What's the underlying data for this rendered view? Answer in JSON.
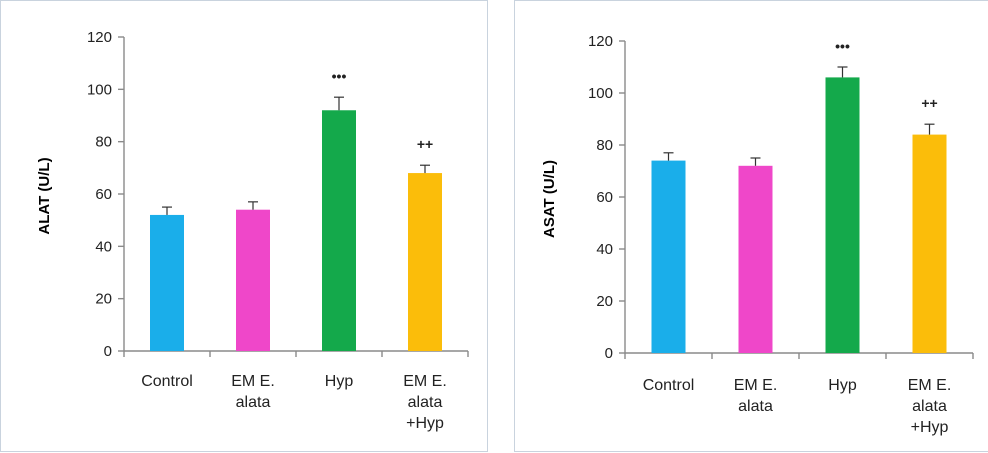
{
  "chart_data": [
    {
      "type": "bar",
      "ylabel": "ALAT (U/L)",
      "categories": [
        "Control",
        "EM E. alata",
        "Hyp",
        "EM E. alata +Hyp"
      ],
      "category_lines": [
        [
          "Control"
        ],
        [
          "EM E.",
          "alata"
        ],
        [
          "Hyp"
        ],
        [
          "EM E.",
          "alata",
          "+Hyp"
        ]
      ],
      "values": [
        52,
        54,
        92,
        68
      ],
      "errors": [
        3,
        3,
        5,
        3
      ],
      "annotations": [
        "",
        "",
        "•••",
        "++"
      ],
      "colors": [
        "#1aaeea",
        "#ef47c9",
        "#14a94b",
        "#fbbd0a"
      ],
      "ylim": [
        0,
        120
      ],
      "yticks": [
        0,
        20,
        40,
        60,
        80,
        100,
        120
      ],
      "grid": false
    },
    {
      "type": "bar",
      "ylabel": "ASAT (U/L)",
      "categories": [
        "Control",
        "EM E. alata",
        "Hyp",
        "EM E. alata +Hyp"
      ],
      "category_lines": [
        [
          "Control"
        ],
        [
          "EM E.",
          "alata"
        ],
        [
          "Hyp"
        ],
        [
          "EM E.",
          "alata",
          "+Hyp"
        ]
      ],
      "values": [
        74,
        72,
        106,
        84
      ],
      "errors": [
        3,
        3,
        4,
        4
      ],
      "annotations": [
        "",
        "",
        "•••",
        "++"
      ],
      "colors": [
        "#1aaeea",
        "#ef47c9",
        "#14a94b",
        "#fbbd0a"
      ],
      "ylim": [
        0,
        120
      ],
      "yticks": [
        0,
        20,
        40,
        60,
        80,
        100,
        120
      ],
      "grid": false
    }
  ]
}
